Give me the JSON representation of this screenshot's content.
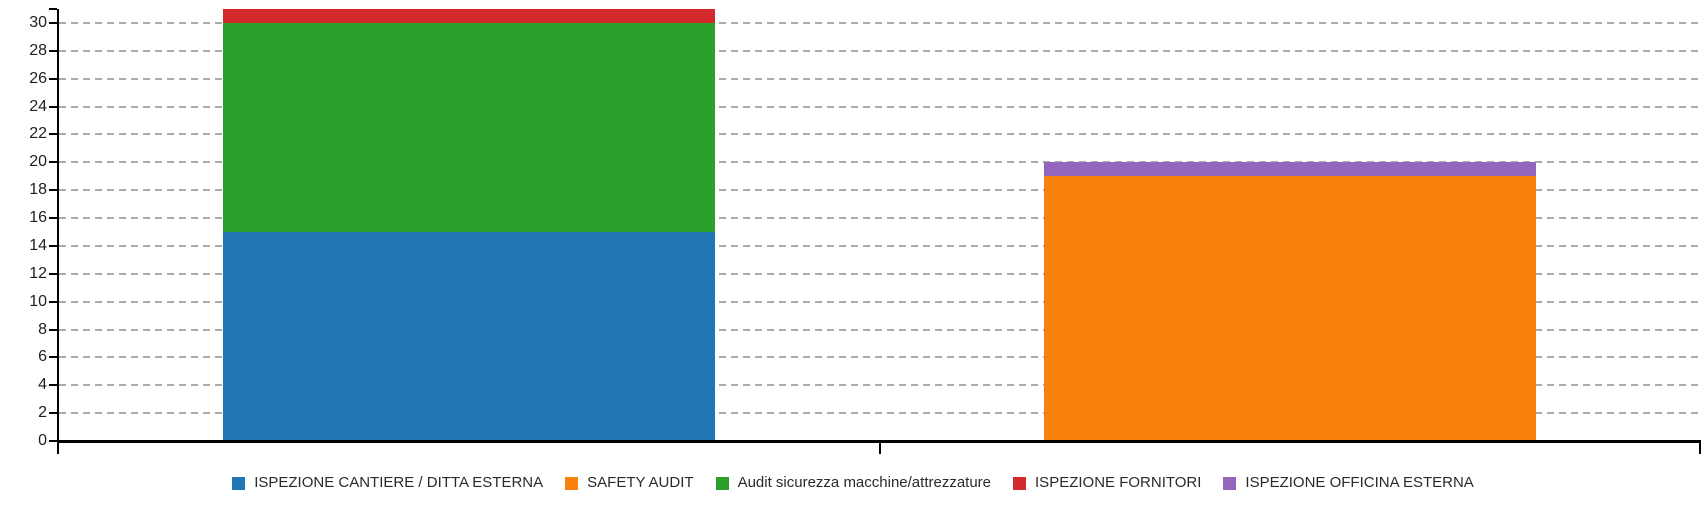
{
  "chart_data": {
    "type": "bar",
    "stacked": true,
    "title": "",
    "categories": [
      "",
      ""
    ],
    "series": [
      {
        "name": "ISPEZIONE CANTIERE / DITTA ESTERNA",
        "color": "#2176b5",
        "values": [
          15,
          0
        ]
      },
      {
        "name": "SAFETY AUDIT",
        "color": "#fb810e",
        "values": [
          0,
          19
        ]
      },
      {
        "name": "Audit sicurezza macchine/attrezzature",
        "color": "#2ca02c",
        "values": [
          15,
          0
        ]
      },
      {
        "name": "ISPEZIONE FORNITORI",
        "color": "#d22a2c",
        "values": [
          1,
          0
        ]
      },
      {
        "name": "ISPEZIONE OFFICINA ESTERNA",
        "color": "#9467bd",
        "values": [
          0,
          1
        ]
      }
    ],
    "bar_totals": [
      31,
      20
    ],
    "ylim": [
      0,
      31
    ],
    "yticks": [
      0,
      2,
      4,
      6,
      8,
      10,
      12,
      14,
      16,
      18,
      20,
      22,
      24,
      26,
      28,
      30
    ],
    "ytick_labels": [
      "0",
      "2",
      "4",
      "6",
      "8",
      "10",
      "12",
      "14",
      "16",
      "18",
      "20",
      "22",
      "24",
      "26",
      "28",
      "30"
    ],
    "xlabel": "",
    "ylabel": "",
    "grid": "horizontal-dashed",
    "legend_position": "bottom-center"
  },
  "colors": {
    "background": "#ffffff",
    "grid_color": "#ababab",
    "axis_color": "#000000",
    "tick_label_color": "#1f1f1f",
    "legend_text_color": "#2a2a2a"
  }
}
